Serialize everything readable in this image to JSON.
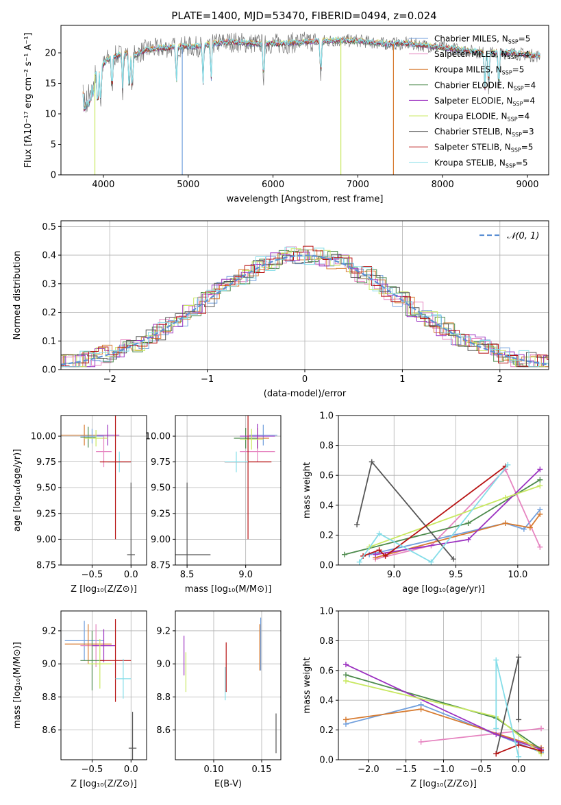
{
  "figure": {
    "title": "PLATE=1400, MJD=53470, FIBERID=0494, z=0.024"
  },
  "series_colors": [
    "#6f9edc",
    "#e684c0",
    "#d77b30",
    "#4c8a4c",
    "#9b30c0",
    "#c8e860",
    "#555555",
    "#b81414",
    "#84dde8"
  ],
  "chart_data": [
    {
      "id": "spectrum",
      "type": "line",
      "title": "PLATE=1400, MJD=53470, FIBERID=0494, z=0.024",
      "xlabel": "wavelength [Angstrom, rest frame]",
      "ylabel": "Flux [fλ10⁻¹⁷ erg cm⁻² s⁻¹ A⁻¹]",
      "xlim": [
        3500,
        9250
      ],
      "ylim": [
        0,
        24.5
      ],
      "xticks": [
        4000,
        5000,
        6000,
        7000,
        8000,
        9000
      ],
      "yticks": [
        0,
        5,
        10,
        15,
        20
      ],
      "grid": false,
      "legend_position": "right",
      "series": [
        {
          "name": "Chabrier MILES, N",
          "sub": "SSP",
          "suffix": "=5"
        },
        {
          "name": "Salpeter MILES, N",
          "sub": "SSP",
          "suffix": "=4"
        },
        {
          "name": "Kroupa MILES, N",
          "sub": "SSP",
          "suffix": "=5"
        },
        {
          "name": "Chabrier ELODIE, N",
          "sub": "SSP",
          "suffix": "=4"
        },
        {
          "name": "Salpeter ELODIE, N",
          "sub": "SSP",
          "suffix": "=4"
        },
        {
          "name": "Kroupa ELODIE, N",
          "sub": "SSP",
          "suffix": "=4"
        },
        {
          "name": "Chabrier STELIB, N",
          "sub": "SSP",
          "suffix": "=3"
        },
        {
          "name": "Salpeter STELIB, N",
          "sub": "SSP",
          "suffix": "=5"
        },
        {
          "name": "Kroupa STELIB, N",
          "sub": "SSP",
          "suffix": "=5"
        }
      ],
      "continuum": {
        "x": [
          3750,
          3850,
          3950,
          4050,
          4150,
          4250,
          4350,
          4500,
          4700,
          4900,
          5100,
          5300,
          5500,
          5800,
          6100,
          6400,
          6700,
          7000,
          7300,
          7600,
          7900,
          8200,
          8500,
          8800,
          9100
        ],
        "y": [
          13,
          16,
          17,
          19,
          19.5,
          20,
          19.5,
          20.5,
          20.8,
          21,
          21,
          21.5,
          21.8,
          21.5,
          21.5,
          21.8,
          22,
          22,
          21.5,
          21.5,
          21,
          20.5,
          20,
          20,
          19.5
        ]
      },
      "drops": [
        {
          "x": 3900,
          "y": 0,
          "series": 5
        },
        {
          "x": 4930,
          "y": 0,
          "series": 0
        },
        {
          "x": 6800,
          "y": 0,
          "series": 5
        },
        {
          "x": 7420,
          "y": 0,
          "series": 2
        }
      ]
    },
    {
      "id": "residuals",
      "type": "line",
      "xlabel": "(data-model)/error",
      "ylabel": "Normed distribution",
      "xlim": [
        -2.5,
        2.5
      ],
      "ylim": [
        0,
        0.52
      ],
      "xticks": [
        -2,
        -1,
        0,
        1,
        2
      ],
      "yticks": [
        0.0,
        0.1,
        0.2,
        0.3,
        0.4,
        0.5
      ],
      "grid": true,
      "legend": "𝒩(0, 1)",
      "legend_position": "top-right",
      "normal": {
        "mean": 0,
        "sigma": 1
      }
    },
    {
      "id": "age-vs-Z",
      "type": "scatter",
      "xlabel": "Z [log₁₀(Z/Z⊙)]",
      "ylabel": "age  [log₁₀(age/yr)]",
      "xlim": [
        -0.9,
        0.2
      ],
      "ylim": [
        8.75,
        10.2
      ],
      "xticks": [
        -0.5,
        0.0
      ],
      "yticks": [
        8.75,
        9.0,
        9.25,
        9.5,
        9.75,
        10.0
      ],
      "grid": true,
      "points": [
        {
          "x": -0.6,
          "y": 10.01,
          "xerr": 0.3,
          "yerr": 0.1,
          "series": 2
        },
        {
          "x": -0.55,
          "y": 9.99,
          "xerr": 0.1,
          "yerr": 0.1,
          "series": 3
        },
        {
          "x": -0.5,
          "y": 10.0,
          "xerr": 0.15,
          "yerr": 0.07,
          "series": 0
        },
        {
          "x": -0.3,
          "y": 10.01,
          "xerr": 0.15,
          "yerr": 0.1,
          "series": 4
        },
        {
          "x": -0.45,
          "y": 9.98,
          "xerr": 0.15,
          "yerr": 0.08,
          "series": 5
        },
        {
          "x": -0.35,
          "y": 9.85,
          "xerr": 0.1,
          "yerr": 0.15,
          "series": 1
        },
        {
          "x": -0.15,
          "y": 9.75,
          "xerr": 0.15,
          "yerr": 0.1,
          "series": 8
        },
        {
          "x": -0.2,
          "y": 9.75,
          "xerr": 0.2,
          "yerr": 0.75,
          "series": 7
        },
        {
          "x": 0.0,
          "y": 8.85,
          "xerr": 0.05,
          "yerr": 0.7,
          "series": 6
        }
      ]
    },
    {
      "id": "age-vs-mass",
      "type": "scatter",
      "xlabel": "mass [log₁₀(M/M⊙)]",
      "ylabel": "",
      "xlim": [
        8.4,
        9.3
      ],
      "ylim": [
        8.75,
        10.2
      ],
      "xticks": [
        8.5,
        9.0
      ],
      "yticks": [
        8.75,
        9.0,
        9.25,
        9.5,
        9.75,
        10.0
      ],
      "grid": true,
      "points": [
        {
          "x": 9.15,
          "y": 10.01,
          "xerr": 0.12,
          "yerr": 0.1,
          "series": 0
        },
        {
          "x": 9.1,
          "y": 9.85,
          "xerr": 0.15,
          "yerr": 0.1,
          "series": 1
        },
        {
          "x": 9.1,
          "y": 9.98,
          "xerr": 0.1,
          "yerr": 0.1,
          "series": 2
        },
        {
          "x": 9.0,
          "y": 9.98,
          "xerr": 0.1,
          "yerr": 0.1,
          "series": 3
        },
        {
          "x": 9.1,
          "y": 10.0,
          "xerr": 0.15,
          "yerr": 0.12,
          "series": 4
        },
        {
          "x": 9.05,
          "y": 9.97,
          "xerr": 0.1,
          "yerr": 0.1,
          "series": 5
        },
        {
          "x": 8.5,
          "y": 8.85,
          "xerr": 0.2,
          "yerr": 0.7,
          "series": 6
        },
        {
          "x": 9.02,
          "y": 9.75,
          "xerr": 0.2,
          "yerr": 0.75,
          "series": 7
        },
        {
          "x": 8.92,
          "y": 9.75,
          "xerr": 0.1,
          "yerr": 0.1,
          "series": 8
        }
      ]
    },
    {
      "id": "weight-vs-age",
      "type": "line",
      "xlabel": "age  [log₁₀(age/yr)]",
      "ylabel": "mass weight",
      "xlim": [
        8.55,
        10.25
      ],
      "ylim": [
        0.0,
        1.0
      ],
      "xticks": [
        9.0,
        9.5,
        10.0
      ],
      "yticks": [
        0.0,
        0.2,
        0.4,
        0.6,
        0.8,
        1.0
      ],
      "grid": true,
      "series": [
        {
          "series": 0,
          "x": [
            8.8,
            9.9,
            10.05,
            10.18
          ],
          "y": [
            0.07,
            0.28,
            0.24,
            0.37
          ]
        },
        {
          "series": 1,
          "x": [
            8.85,
            9.3,
            9.9,
            10.18
          ],
          "y": [
            0.04,
            0.13,
            0.64,
            0.12
          ]
        },
        {
          "series": 2,
          "x": [
            8.85,
            9.9,
            10.1,
            10.18
          ],
          "y": [
            0.05,
            0.28,
            0.25,
            0.34
          ]
        },
        {
          "series": 3,
          "x": [
            8.6,
            9.6,
            10.18
          ],
          "y": [
            0.07,
            0.28,
            0.57
          ]
        },
        {
          "series": 4,
          "x": [
            8.85,
            9.6,
            10.18
          ],
          "y": [
            0.07,
            0.17,
            0.64
          ]
        },
        {
          "series": 5,
          "x": [
            8.8,
            9.9,
            10.18
          ],
          "y": [
            0.12,
            0.45,
            0.53
          ]
        },
        {
          "series": 6,
          "x": [
            8.7,
            8.82,
            9.48
          ],
          "y": [
            0.27,
            0.69,
            0.04
          ]
        },
        {
          "series": 7,
          "x": [
            8.75,
            8.88,
            8.93,
            9.9
          ],
          "y": [
            0.06,
            0.1,
            0.06,
            0.66
          ]
        },
        {
          "series": 8,
          "x": [
            8.72,
            8.88,
            9.3,
            9.92
          ],
          "y": [
            0.02,
            0.21,
            0.02,
            0.67
          ]
        }
      ]
    },
    {
      "id": "mass-vs-Z",
      "type": "scatter",
      "xlabel": "Z [log₁₀(Z/Z⊙)]",
      "ylabel": "mass [log₁₀(M/M⊙)]",
      "xlim": [
        -0.9,
        0.2
      ],
      "ylim": [
        8.42,
        9.32
      ],
      "xticks": [
        -0.5,
        0.0
      ],
      "yticks": [
        8.6,
        8.8,
        9.0,
        9.2
      ],
      "grid": true,
      "points": [
        {
          "x": -0.6,
          "y": 9.14,
          "xerr": 0.25,
          "yerr": 0.12,
          "series": 0
        },
        {
          "x": -0.45,
          "y": 9.11,
          "xerr": 0.2,
          "yerr": 0.13,
          "series": 1
        },
        {
          "x": -0.55,
          "y": 9.12,
          "xerr": 0.3,
          "yerr": 0.12,
          "series": 2
        },
        {
          "x": -0.5,
          "y": 9.02,
          "xerr": 0.15,
          "yerr": 0.18,
          "series": 3
        },
        {
          "x": -0.35,
          "y": 9.11,
          "xerr": 0.15,
          "yerr": 0.1,
          "series": 4
        },
        {
          "x": -0.4,
          "y": 9.0,
          "xerr": 0.15,
          "yerr": 0.15,
          "series": 5
        },
        {
          "x": -0.2,
          "y": 9.02,
          "xerr": 0.2,
          "yerr": 0.25,
          "series": 7
        },
        {
          "x": -0.1,
          "y": 8.91,
          "xerr": 0.1,
          "yerr": 0.12,
          "series": 8
        },
        {
          "x": 0.02,
          "y": 8.49,
          "xerr": 0.05,
          "yerr": 0.22,
          "series": 6
        }
      ]
    },
    {
      "id": "mass-vs-ebv",
      "type": "scatter",
      "xlabel": "E(B-V)",
      "ylabel": "",
      "xlim": [
        0.06,
        0.17
      ],
      "ylim": [
        8.42,
        9.32
      ],
      "xticks": [
        0.1,
        0.15
      ],
      "yticks": [
        8.6,
        8.8,
        9.0,
        9.2
      ],
      "grid": true,
      "points": [
        {
          "x": 0.069,
          "y": 9.05,
          "yerr": 0.12,
          "series": 4
        },
        {
          "x": 0.071,
          "y": 8.95,
          "yerr": 0.12,
          "series": 5
        },
        {
          "x": 0.113,
          "y": 8.98,
          "yerr": 0.15,
          "series": 7
        },
        {
          "x": 0.112,
          "y": 8.88,
          "yerr": 0.1,
          "series": 8
        },
        {
          "x": 0.148,
          "y": 9.1,
          "yerr": 0.14,
          "series": 2
        },
        {
          "x": 0.149,
          "y": 9.12,
          "yerr": 0.16,
          "series": 0
        },
        {
          "x": 0.165,
          "y": 8.58,
          "yerr": 0.12,
          "series": 6
        }
      ]
    },
    {
      "id": "weight-vs-Z",
      "type": "line",
      "xlabel": "Z [log₁₀(Z/Z⊙)]",
      "ylabel": "mass weight",
      "xlim": [
        -2.4,
        0.4
      ],
      "ylim": [
        0.0,
        1.0
      ],
      "xticks": [
        -2.0,
        -1.5,
        -1.0,
        -0.5,
        0.0
      ],
      "yticks": [
        0.0,
        0.2,
        0.4,
        0.6,
        0.8,
        1.0
      ],
      "grid": true,
      "series": [
        {
          "series": 0,
          "x": [
            -2.3,
            -1.3,
            0.3
          ],
          "y": [
            0.24,
            0.37,
            0.05
          ]
        },
        {
          "series": 1,
          "x": [
            -1.3,
            0.3
          ],
          "y": [
            0.12,
            0.21
          ]
        },
        {
          "series": 2,
          "x": [
            -2.3,
            -1.3,
            0.3
          ],
          "y": [
            0.27,
            0.34,
            0.08
          ]
        },
        {
          "series": 3,
          "x": [
            -2.3,
            -0.3,
            0.3
          ],
          "y": [
            0.57,
            0.28,
            0.07
          ]
        },
        {
          "series": 4,
          "x": [
            -2.3,
            -0.3,
            0.3
          ],
          "y": [
            0.64,
            0.17,
            0.07
          ]
        },
        {
          "series": 5,
          "x": [
            -2.3,
            -0.3,
            0.3
          ],
          "y": [
            0.53,
            0.29,
            0.04
          ]
        },
        {
          "series": 6,
          "x": [
            -0.3,
            0.0,
            0.0
          ],
          "y": [
            0.04,
            0.69,
            0.27
          ]
        },
        {
          "series": 7,
          "x": [
            -0.3,
            0.0,
            0.3
          ],
          "y": [
            0.04,
            0.1,
            0.06
          ]
        },
        {
          "series": 8,
          "x": [
            -0.3,
            -0.3,
            0.0
          ],
          "y": [
            0.21,
            0.67,
            0.02
          ]
        }
      ]
    }
  ]
}
